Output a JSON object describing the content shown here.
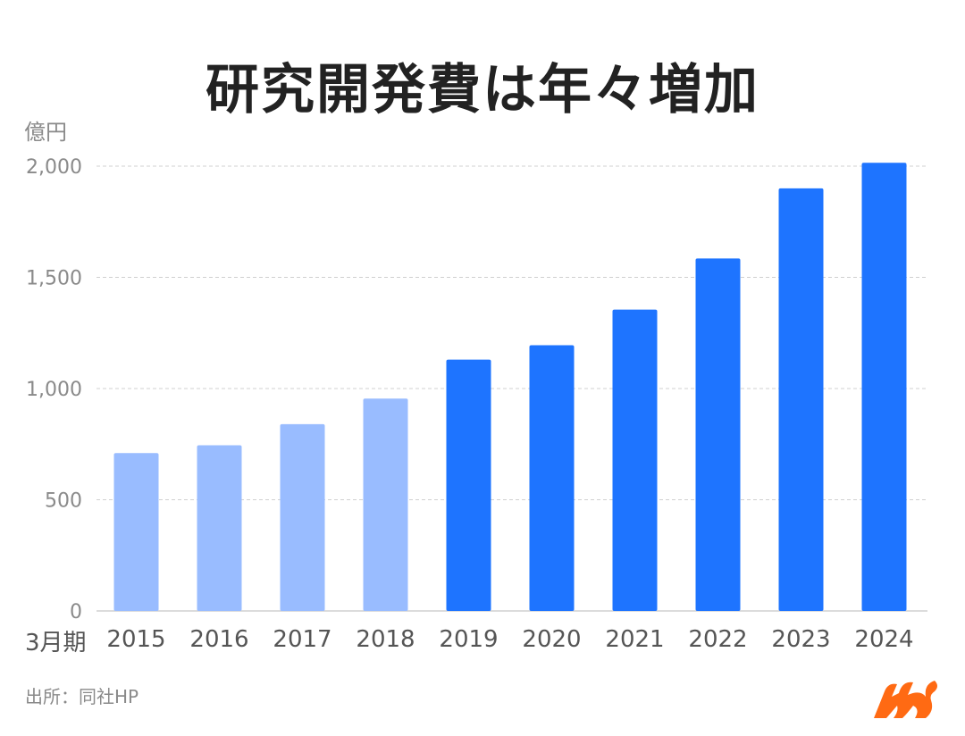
{
  "title": "研究開発費は年々増加",
  "unit_label": "億円",
  "period_label": "3月期",
  "source": "出所：同社HP",
  "colors": {
    "bar_light": "#99BCFF",
    "bar_dark": "#1E74FF",
    "grid": "#d0d0d0",
    "axis_text": "#8a8a8a",
    "category_text": "#555555",
    "title": "#222222",
    "logo": "#FF6A13"
  },
  "chart_data": {
    "type": "bar",
    "categories": [
      "2015",
      "2016",
      "2017",
      "2018",
      "2019",
      "2020",
      "2021",
      "2022",
      "2023",
      "2024"
    ],
    "values": [
      710,
      745,
      840,
      955,
      1130,
      1195,
      1355,
      1585,
      1900,
      2015
    ],
    "highlight_from_index": 4,
    "ylim": [
      0,
      2000
    ],
    "yticks": [
      0,
      500,
      1000,
      1500,
      2000
    ],
    "ytick_labels": [
      "0",
      "500",
      "1,000",
      "1,500",
      "2,000"
    ],
    "ylabel": "億円",
    "xlabel": "3月期",
    "grid": true
  }
}
